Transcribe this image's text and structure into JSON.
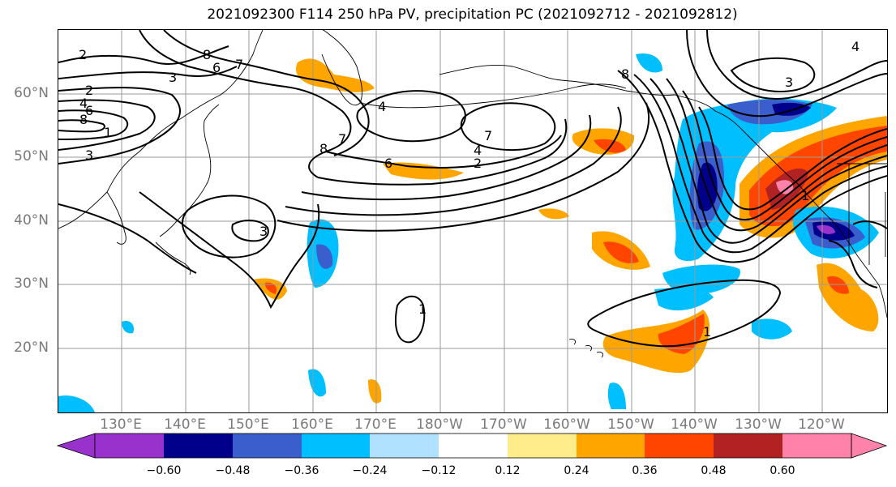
{
  "title": "2021092300 F114 250 hPa PV, precipitation PC (2021092712 - 2021092812)",
  "latitude_labels": [
    "60°N",
    "50°N",
    "40°N",
    "30°N",
    "20°N"
  ],
  "longitude_labels": [
    "130°E",
    "140°E",
    "150°E",
    "160°E",
    "170°E",
    "180°W",
    "170°W",
    "160°W",
    "150°W",
    "140°W",
    "130°W",
    "120°W"
  ],
  "colorbar": {
    "tick_labels": [
      "−0.60",
      "−0.48",
      "−0.36",
      "−0.24",
      "−0.12",
      "0.12",
      "0.24",
      "0.36",
      "0.48",
      "0.60"
    ],
    "colors": [
      "#9932cc",
      "#00008b",
      "#3a5fcd",
      "#00bfff",
      "#b0e2ff",
      "#ffffff",
      "#ffec8b",
      "#ffa500",
      "#ff4500",
      "#b22222",
      "#ff82ab"
    ]
  },
  "contour_labels": [
    "2",
    "8",
    "6",
    "7",
    "3",
    "2",
    "4",
    "6",
    "8",
    "1",
    "3",
    "4",
    "7",
    "8",
    "7",
    "4",
    "2",
    "6",
    "3",
    "1",
    "8",
    "3",
    "4",
    "1",
    "1"
  ],
  "contour_color": "#000000"
}
